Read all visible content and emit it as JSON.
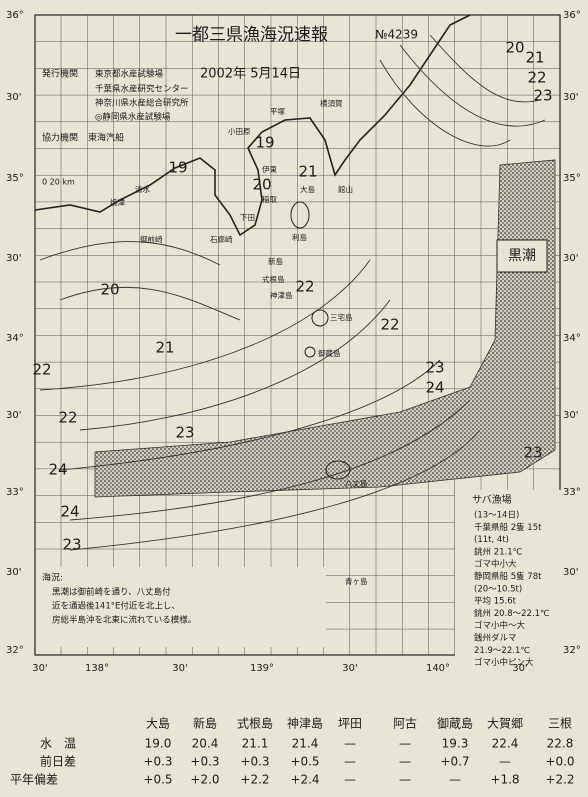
{
  "header": {
    "title": "一都三県漁海況速報",
    "number": "№4239",
    "date": "2002年 5月14日",
    "issuer_label": "発行機関",
    "issuers": [
      "東京都水産試験場",
      "千葉県水産研究センター",
      "神奈川県水産総合研究所",
      "◎静岡県水産試験場"
    ],
    "cooperator_label": "協力機関",
    "cooperator": "東海汽船"
  },
  "scale": "0    20 km",
  "map": {
    "lat_labels": [
      "36°",
      "30'",
      "35°",
      "30'",
      "34°",
      "30'",
      "33°",
      "30'",
      "32°"
    ],
    "lon_labels": [
      "30'",
      "138°",
      "30'",
      "139°",
      "30'",
      "140°",
      "30'"
    ],
    "current_label": "黒潮",
    "isotherm_labels": [
      20,
      21,
      22,
      23,
      19,
      19,
      20,
      21,
      20,
      21,
      22,
      22,
      22,
      22,
      23,
      23,
      24,
      24,
      24,
      23,
      23
    ],
    "places": [
      "平塚",
      "小田原",
      "横須賀",
      "館山",
      "伊東",
      "稲取",
      "下田",
      "石廊崎",
      "大島",
      "利島",
      "新島",
      "式根島",
      "神津島",
      "三宅島",
      "御蔵島",
      "八丈島",
      "青ヶ島",
      "清水",
      "焼津",
      "御前崎"
    ]
  },
  "fishing_report": {
    "title": "サバ漁場",
    "lines": [
      "(13〜14日)",
      "千葉県船 2隻 15t",
      "(11t, 4t)",
      "銚州 21.1℃",
      "ゴマ中小大",
      "静岡県船 5隻 78t",
      "(20〜10.5t)",
      "平均 15.6t",
      "銚州 20.8〜22.1℃",
      "ゴマ小中〜大",
      "銭州ダルマ",
      "21.9〜22.1℃",
      "ゴマ小中ピン大"
    ]
  },
  "notes": {
    "title": "海況:",
    "lines": [
      "黒潮は御前崎を通り、八丈島付",
      "近を通過後141°E付近を北上し、",
      "房総半島沖を北東に流れている模様。"
    ]
  },
  "table": {
    "columns": [
      "大島",
      "新島",
      "式根島",
      "神津島",
      "坪田",
      "阿古",
      "御蔵島",
      "大賀郷",
      "三根"
    ],
    "rows": [
      {
        "label": "水　温",
        "values": [
          "19.0",
          "20.4",
          "21.1",
          "21.4",
          "—",
          "—",
          "19.3",
          "22.4",
          "22.8"
        ]
      },
      {
        "label": "前日差",
        "values": [
          "+0.3",
          "+0.3",
          "+0.3",
          "+0.5",
          "—",
          "—",
          "+0.7",
          "—",
          "+0.0"
        ]
      },
      {
        "label": "平年偏差",
        "values": [
          "+0.5",
          "+2.0",
          "+2.2",
          "+2.4",
          "—",
          "—",
          "—",
          "+1.8",
          "+2.2"
        ]
      }
    ]
  }
}
